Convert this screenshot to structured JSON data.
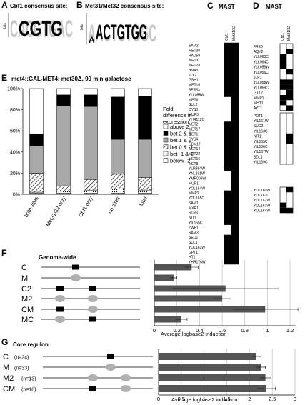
{
  "panels": {
    "A": {
      "label": "A",
      "title": "Cbf1 consensus site:",
      "logo_text": "CACGTGAC",
      "ylabel": "bits"
    },
    "B": {
      "label": "B",
      "title": "Met31/Met32 consensus site:",
      "logo_text": "AACTGTGGC",
      "ylabel": "bits"
    },
    "C": {
      "label": "C",
      "title": "MAST",
      "col1": "Cbf1",
      "col2": "Met31/32",
      "genes": [
        "SAM2",
        "MET30",
        "RAD59",
        "MET3",
        "MET28",
        "BNA3",
        "ICY2",
        "GSH1",
        "MET10",
        "SER33",
        "YLL058W",
        "MET6",
        "SUL2",
        "CYS3",
        "MUP3",
        "YHR112C",
        "MET2",
        "MET17",
        "MET1",
        "CYS4",
        "ECM17",
        "MET14",
        "MET22",
        "MET16",
        "MET8",
        "YLR364W",
        "YNL191W",
        "YMR009W",
        "MUP1",
        "YOL164W",
        "MMP1",
        "YOL165C",
        "SAM1",
        "MXR1",
        "STR3",
        "NIT1",
        "YIL165C",
        "ZWF1",
        "SAM3",
        "SEO1",
        "SUL1",
        "YOL163W",
        "GPT1",
        "HT1",
        "YHR176W"
      ]
    },
    "D": {
      "label": "D",
      "title": "MAST",
      "col1": "Cbf1",
      "col2": "Met31/32",
      "groups": [
        [
          "FRE6",
          "AQY2",
          "YLL063C",
          "YLL064C",
          "YLL055W",
          "YLL056C",
          "JLP1",
          "YLL058W",
          "YLL059C",
          "GTT2",
          "MMP1",
          "MHT1",
          "AYT1"
        ],
        [
          "POT1",
          "YIL161W",
          "SUC2",
          "YIL163C",
          "NIT1",
          "YIL165C",
          "YIL166C",
          "YIL167W",
          "SDL1",
          "YIL169C"
        ],
        [
          "YOL160W",
          "YOL161C",
          "YOL162W",
          "YOL163W",
          "YOL164W"
        ]
      ]
    },
    "E": {
      "label": "E",
      "title": "met4::GAL-MET4: met30Δ, 90 min galactose",
      "legend_title": "Fold difference in expression"
    },
    "F": {
      "label": "F",
      "title": "Genome-wide",
      "xlabel": "Average logbase2 induction"
    },
    "G": {
      "label": "G",
      "title": "Core regulon",
      "xlabel": "Average logbase2 induction"
    }
  },
  "chart_data": [
    {
      "type": "bar",
      "stacked": true,
      "title": "met4::GAL-MET4: met30Δ, 90 min galactose",
      "categories": [
        "both sites",
        "Met31/32 only",
        "Cbf1 only",
        "no sites",
        "total"
      ],
      "ylim": [
        0,
        100
      ],
      "yticks": [
        "0%",
        "20%",
        "40%",
        "60%",
        "80%",
        "100%"
      ],
      "series": [
        {
          "name": "below -2",
          "values": [
            1,
            1,
            1,
            1,
            1
          ]
        },
        {
          "name": "bet -1 &-2",
          "values": [
            1,
            2,
            3,
            4,
            3
          ]
        },
        {
          "name": "bet 0 & -1",
          "values": [
            18,
            5,
            10,
            14,
            12
          ]
        },
        {
          "name": "bet 1 & 0",
          "values": [
            26,
            76,
            69,
            33,
            36
          ]
        },
        {
          "name": "bet 2 & 1",
          "values": [
            11,
            10,
            11,
            40,
            41
          ]
        },
        {
          "name": "above 2",
          "values": [
            43,
            6,
            6,
            8,
            7
          ]
        }
      ],
      "legend_order": [
        "above 2",
        "bet 2 & 1",
        "bet 1 & 0",
        "bet 0 & -1",
        "bet -1 &-2",
        "below -2"
      ],
      "legend_placement": "right"
    },
    {
      "type": "bar",
      "orientation": "horizontal",
      "title": "Genome-wide",
      "categories": [
        "C",
        "M",
        "C2",
        "M2",
        "CM",
        "MC"
      ],
      "values": [
        0.33,
        0.17,
        0.63,
        0.6,
        0.98,
        0.24
      ],
      "errors": [
        0.06,
        0.03,
        0.47,
        0.08,
        0.29,
        0.05
      ],
      "xlim": [
        0,
        1.25
      ],
      "xticks": [
        "0",
        "0.2",
        "0.4",
        "0.6",
        "0.8",
        "1",
        "1.2"
      ],
      "xlabel": "Average logbase2 induction"
    },
    {
      "type": "bar",
      "orientation": "horizontal",
      "title": "Core regulon",
      "categories": [
        "C",
        "M",
        "M2",
        "CM"
      ],
      "counts": [
        "(n=24)",
        "(n=33)",
        "(n=13)",
        "(n=18)"
      ],
      "values": [
        2.15,
        2.25,
        2.35,
        2.37
      ],
      "errors": [
        0.1,
        0.1,
        0.12,
        0.2
      ],
      "xlim": [
        0,
        3
      ],
      "xticks": [
        "0",
        "0.5",
        "1",
        "1.5",
        "2",
        "2.5",
        "3"
      ],
      "xlabel": "Average logbase2 induction"
    }
  ],
  "mast_c": {
    "cbf1_white_spans": [
      [
        11,
        15
      ],
      [
        26,
        29
      ],
      [
        37,
        38
      ]
    ],
    "met_black_rows": [
      10,
      11,
      12
    ]
  },
  "mast_d": {
    "group1_cbf": [
      2,
      3,
      4,
      7,
      8,
      10,
      11
    ],
    "group1_met": [
      1,
      5,
      7,
      8,
      9,
      10,
      12
    ],
    "group2_cbf": [],
    "group2_met": [
      4,
      5
    ],
    "group3_cbf": [
      3,
      4
    ],
    "group3_met": [
      0,
      4
    ]
  },
  "colors": {
    "bar": "#555555",
    "oval": "#b0b0b0",
    "box": "#000000",
    "grid": "#bfbfbf",
    "seg_light": "#a8a8a8",
    "seg_dark": "#000000"
  }
}
